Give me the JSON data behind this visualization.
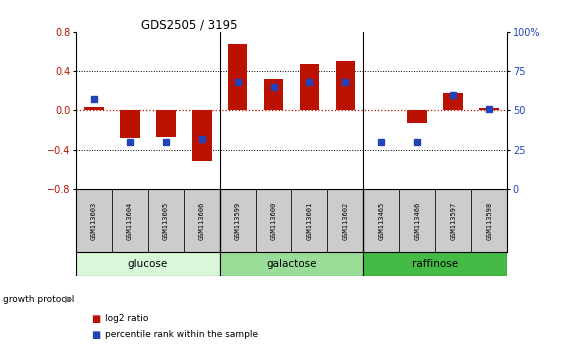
{
  "title": "GDS2505 / 3195",
  "samples": [
    "GSM113603",
    "GSM113604",
    "GSM113605",
    "GSM113606",
    "GSM113599",
    "GSM113600",
    "GSM113601",
    "GSM113602",
    "GSM113465",
    "GSM113466",
    "GSM113597",
    "GSM113598"
  ],
  "log2_ratio": [
    0.03,
    -0.28,
    -0.27,
    -0.52,
    0.68,
    0.32,
    0.47,
    0.5,
    0.0,
    -0.13,
    0.18,
    0.02
  ],
  "percentile_rank": [
    57,
    30,
    30,
    32,
    68,
    65,
    68,
    68,
    30,
    30,
    60,
    51
  ],
  "groups": [
    {
      "label": "glucose",
      "start": 0,
      "end": 4,
      "color": "#d9f7d9"
    },
    {
      "label": "galactose",
      "start": 4,
      "end": 8,
      "color": "#99dd99"
    },
    {
      "label": "raffinose",
      "start": 8,
      "end": 12,
      "color": "#44bb44"
    }
  ],
  "ylim_left": [
    -0.8,
    0.8
  ],
  "ylim_right": [
    0,
    100
  ],
  "yticks_left": [
    -0.8,
    -0.4,
    0.0,
    0.4,
    0.8
  ],
  "yticks_right": [
    0,
    25,
    50,
    75,
    100
  ],
  "red_color": "#bb1100",
  "blue_color": "#2244bb",
  "bg_color": "#ffffff",
  "legend_log2": "log2 ratio",
  "legend_pct": "percentile rank within the sample",
  "growth_label": "growth protocol"
}
